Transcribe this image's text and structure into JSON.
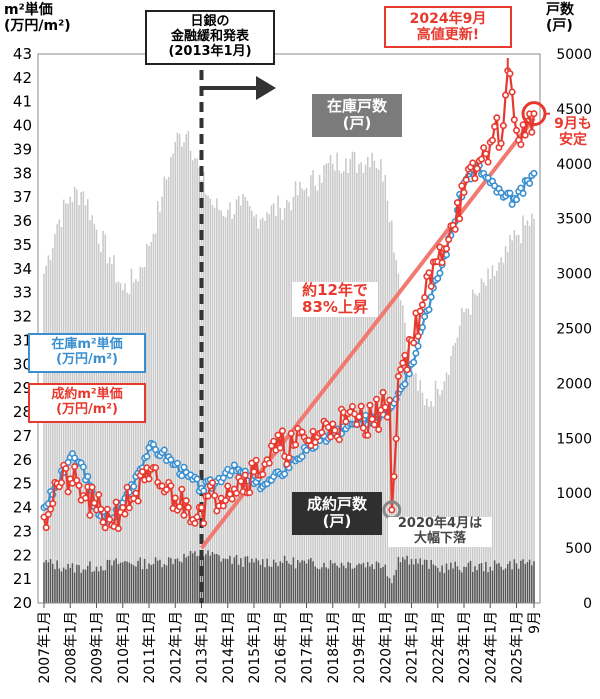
{
  "labels": {
    "y_left": "m²単価\n(万円/m²)",
    "y_right": "戸数\n(戸)",
    "boj": "日銀の\n金融緩和発表\n(2013年1月)",
    "peak": "2024年9月\n高値更新!",
    "stock_units": "在庫戸数\n(戸)",
    "sales_units": "成約戸数\n(戸)",
    "stock_price": "在庫m²単価\n(万円/m²)",
    "sales_price": "成約m²単価\n(万円/m²)",
    "trend": "約12年で\n83%上昇",
    "stable": "9月も\n安定",
    "covid": "2020年4月は\n大幅下落"
  },
  "colors": {
    "sales_price": "#e8392f",
    "stock_price": "#3a8fd0",
    "stock_units_bar": "#c8c8c8",
    "sales_units_bar": "#555555",
    "annotation_line": "#333333"
  },
  "chart_data": {
    "type": "line",
    "x_axis": {
      "start": "2007-01",
      "end": "2025-09",
      "ticks": [
        "2007年1月",
        "2008年1月",
        "2009年1月",
        "2010年1月",
        "2011年1月",
        "2012年1月",
        "2013年1月",
        "2014年1月",
        "2015年1月",
        "2016年1月",
        "2017年1月",
        "2018年1月",
        "2019年1月",
        "2020年1月",
        "2021年1月",
        "2022年1月",
        "2023年1月",
        "2024年1月",
        "2025年1月",
        "9月"
      ]
    },
    "y_left": {
      "min": 20,
      "max": 43,
      "ticks": [
        20,
        21,
        22,
        23,
        24,
        25,
        26,
        27,
        28,
        29,
        30,
        31,
        32,
        33,
        34,
        35,
        36,
        37,
        38,
        39,
        40,
        41,
        42,
        43
      ]
    },
    "y_right": {
      "min": 0,
      "max": 5000,
      "ticks": [
        0,
        500,
        1000,
        1500,
        2000,
        2500,
        3000,
        3500,
        4000,
        4500,
        5000
      ]
    },
    "series": [
      {
        "name": "成約m²単価",
        "axis": "left",
        "monthly_knots": [
          [
            "2007-01",
            23.6
          ],
          [
            "2007-07",
            25.0
          ],
          [
            "2008-01",
            25.2
          ],
          [
            "2008-07",
            24.5
          ],
          [
            "2009-01",
            23.9
          ],
          [
            "2009-07",
            23.5
          ],
          [
            "2010-01",
            24.0
          ],
          [
            "2010-07",
            24.6
          ],
          [
            "2011-01",
            25.2
          ],
          [
            "2011-07",
            24.9
          ],
          [
            "2012-01",
            24.4
          ],
          [
            "2012-07",
            24.0
          ],
          [
            "2013-01",
            24.0
          ],
          [
            "2013-07",
            24.5
          ],
          [
            "2014-01",
            24.9
          ],
          [
            "2014-07",
            25.1
          ],
          [
            "2015-01",
            25.5
          ],
          [
            "2015-07",
            26.0
          ],
          [
            "2016-01",
            26.5
          ],
          [
            "2016-07",
            26.6
          ],
          [
            "2017-01",
            26.8
          ],
          [
            "2017-07",
            27.1
          ],
          [
            "2018-01",
            27.5
          ],
          [
            "2018-07",
            27.6
          ],
          [
            "2019-01",
            27.8
          ],
          [
            "2019-07",
            27.7
          ],
          [
            "2020-01",
            28.2
          ],
          [
            "2020-03",
            28.5
          ],
          [
            "2020-04",
            23.9
          ],
          [
            "2020-05",
            25.3
          ],
          [
            "2020-07",
            29.5
          ],
          [
            "2021-01",
            31.0
          ],
          [
            "2021-07",
            32.8
          ],
          [
            "2022-01",
            34.3
          ],
          [
            "2022-07",
            35.8
          ],
          [
            "2023-01",
            37.2
          ],
          [
            "2023-07",
            38.2
          ],
          [
            "2024-01",
            39.3
          ],
          [
            "2024-07",
            40.0
          ],
          [
            "2024-09",
            42.3
          ],
          [
            "2025-01",
            39.8
          ],
          [
            "2025-05",
            39.6
          ],
          [
            "2025-09",
            40.5
          ]
        ]
      },
      {
        "name": "在庫m²単価",
        "axis": "left",
        "monthly_knots": [
          [
            "2007-01",
            24.0
          ],
          [
            "2007-07",
            24.9
          ],
          [
            "2008-01",
            26.1
          ],
          [
            "2008-07",
            25.7
          ],
          [
            "2009-01",
            23.9
          ],
          [
            "2009-07",
            23.4
          ],
          [
            "2010-01",
            24.2
          ],
          [
            "2010-07",
            25.3
          ],
          [
            "2011-01",
            26.5
          ],
          [
            "2011-07",
            26.3
          ],
          [
            "2012-01",
            25.8
          ],
          [
            "2012-07",
            25.3
          ],
          [
            "2013-01",
            24.8
          ],
          [
            "2013-07",
            25.0
          ],
          [
            "2014-01",
            25.6
          ],
          [
            "2014-07",
            25.5
          ],
          [
            "2015-01",
            25.0
          ],
          [
            "2015-07",
            25.0
          ],
          [
            "2016-01",
            25.4
          ],
          [
            "2016-07",
            26.0
          ],
          [
            "2017-01",
            26.4
          ],
          [
            "2017-07",
            26.8
          ],
          [
            "2018-01",
            27.1
          ],
          [
            "2018-07",
            27.3
          ],
          [
            "2019-01",
            27.5
          ],
          [
            "2019-07",
            27.8
          ],
          [
            "2020-01",
            28.1
          ],
          [
            "2020-07",
            28.8
          ],
          [
            "2021-01",
            30.0
          ],
          [
            "2021-07",
            32.0
          ],
          [
            "2022-01",
            33.6
          ],
          [
            "2022-07",
            35.4
          ],
          [
            "2023-01",
            37.6
          ],
          [
            "2023-07",
            38.3
          ],
          [
            "2024-01",
            37.6
          ],
          [
            "2024-07",
            37.0
          ],
          [
            "2025-01",
            36.9
          ],
          [
            "2025-09",
            38.0
          ]
        ]
      },
      {
        "name": "在庫戸数",
        "axis": "right",
        "type": "bar",
        "monthly_knots": [
          [
            "2007-01",
            3000
          ],
          [
            "2007-07",
            3450
          ],
          [
            "2008-01",
            3700
          ],
          [
            "2008-07",
            3750
          ],
          [
            "2009-01",
            3400
          ],
          [
            "2009-07",
            3150
          ],
          [
            "2010-01",
            2850
          ],
          [
            "2010-07",
            2950
          ],
          [
            "2011-01",
            3250
          ],
          [
            "2011-07",
            3700
          ],
          [
            "2012-01",
            4200
          ],
          [
            "2012-07",
            4300
          ],
          [
            "2013-01",
            3850
          ],
          [
            "2013-07",
            3600
          ],
          [
            "2014-01",
            3580
          ],
          [
            "2014-07",
            3620
          ],
          [
            "2015-01",
            3520
          ],
          [
            "2015-07",
            3560
          ],
          [
            "2016-01",
            3600
          ],
          [
            "2016-07",
            3700
          ],
          [
            "2017-01",
            3780
          ],
          [
            "2017-07",
            3900
          ],
          [
            "2018-01",
            4000
          ],
          [
            "2018-07",
            4050
          ],
          [
            "2019-01",
            4000
          ],
          [
            "2019-07",
            4100
          ],
          [
            "2020-01",
            3900
          ],
          [
            "2020-07",
            3000
          ],
          [
            "2021-01",
            2150
          ],
          [
            "2021-07",
            1800
          ],
          [
            "2022-01",
            1950
          ],
          [
            "2022-07",
            2250
          ],
          [
            "2023-01",
            2650
          ],
          [
            "2023-07",
            2800
          ],
          [
            "2024-01",
            2950
          ],
          [
            "2024-07",
            3100
          ],
          [
            "2025-01",
            3350
          ],
          [
            "2025-09",
            3500
          ]
        ]
      },
      {
        "name": "成約戸数",
        "axis": "right",
        "type": "bar",
        "monthly_knots": [
          [
            "2007-01",
            370
          ],
          [
            "2008-01",
            320
          ],
          [
            "2009-01",
            330
          ],
          [
            "2010-01",
            370
          ],
          [
            "2011-01",
            360
          ],
          [
            "2012-01",
            400
          ],
          [
            "2013-01",
            450
          ],
          [
            "2014-01",
            400
          ],
          [
            "2015-01",
            370
          ],
          [
            "2016-01",
            380
          ],
          [
            "2017-01",
            360
          ],
          [
            "2018-01",
            360
          ],
          [
            "2019-01",
            360
          ],
          [
            "2020-01",
            350
          ],
          [
            "2020-04",
            180
          ],
          [
            "2020-07",
            420
          ],
          [
            "2021-01",
            400
          ],
          [
            "2022-01",
            320
          ],
          [
            "2023-01",
            330
          ],
          [
            "2024-01",
            330
          ],
          [
            "2025-01",
            360
          ],
          [
            "2025-09",
            380
          ]
        ]
      }
    ]
  }
}
